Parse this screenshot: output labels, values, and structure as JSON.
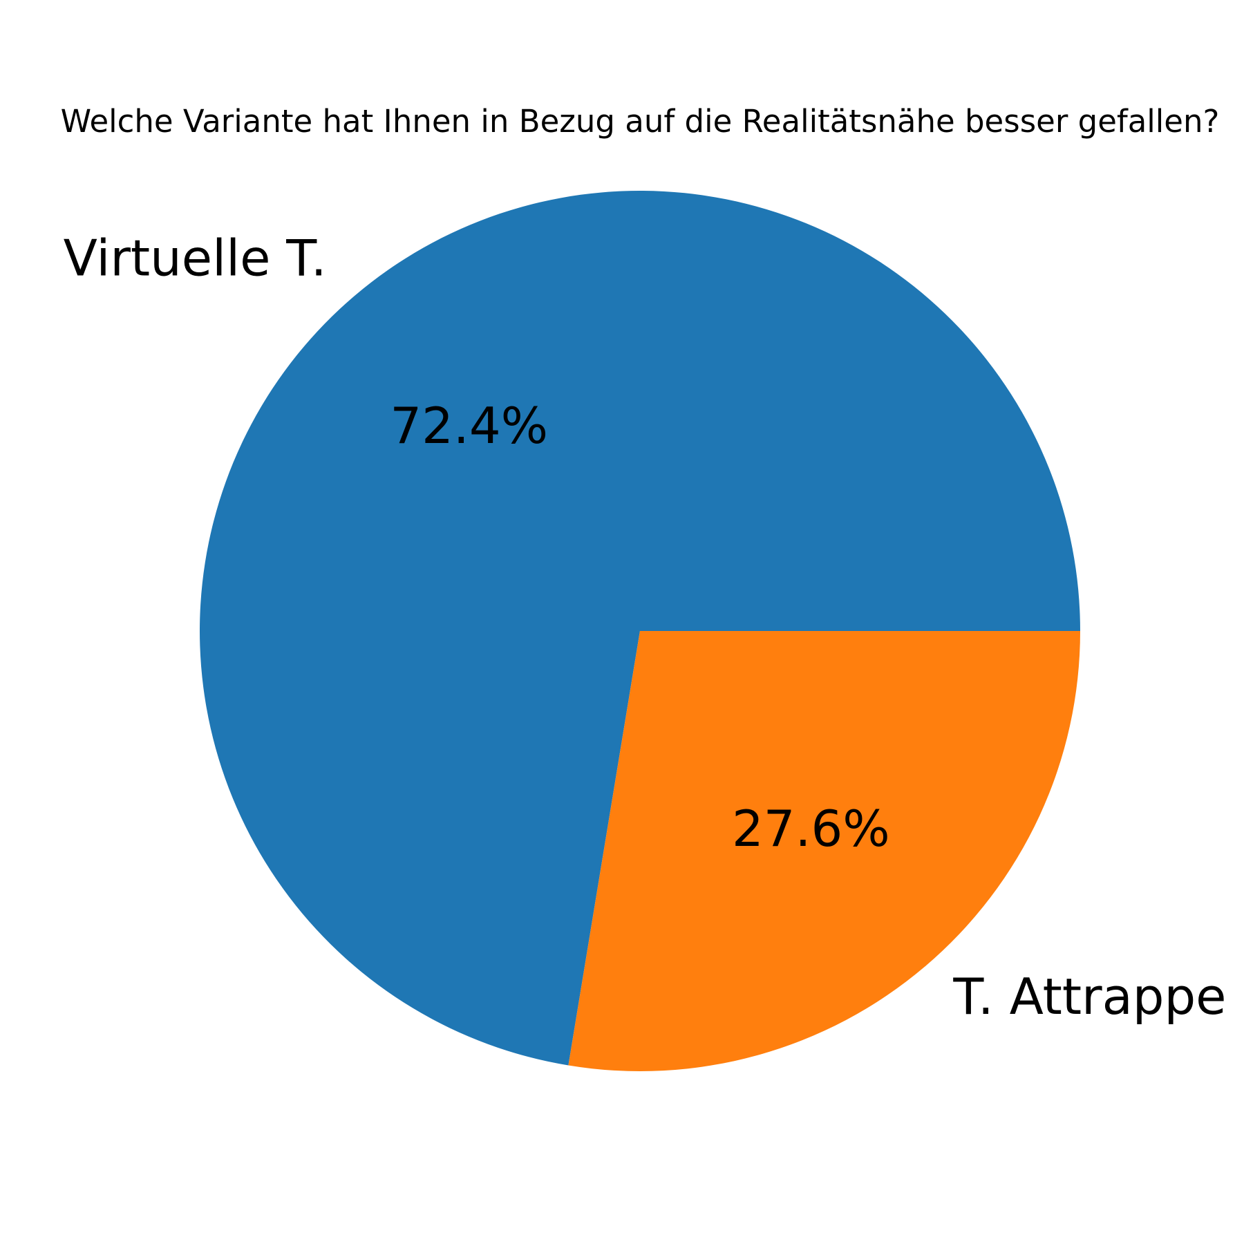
{
  "chart_data": {
    "type": "pie",
    "title": "Welche Variante hat Ihnen in Bezug auf die Realitätsnähe besser gefallen?",
    "categories": [
      "Virtuelle T.",
      "T. Attrappe"
    ],
    "values": [
      72.4,
      27.6
    ],
    "value_labels": [
      "72.4%",
      "27.6%"
    ],
    "colors": [
      "#1f77b4",
      "#ff7f0e"
    ],
    "start_angle_deg": 0,
    "direction": "counterclockwise",
    "legend": "none"
  }
}
